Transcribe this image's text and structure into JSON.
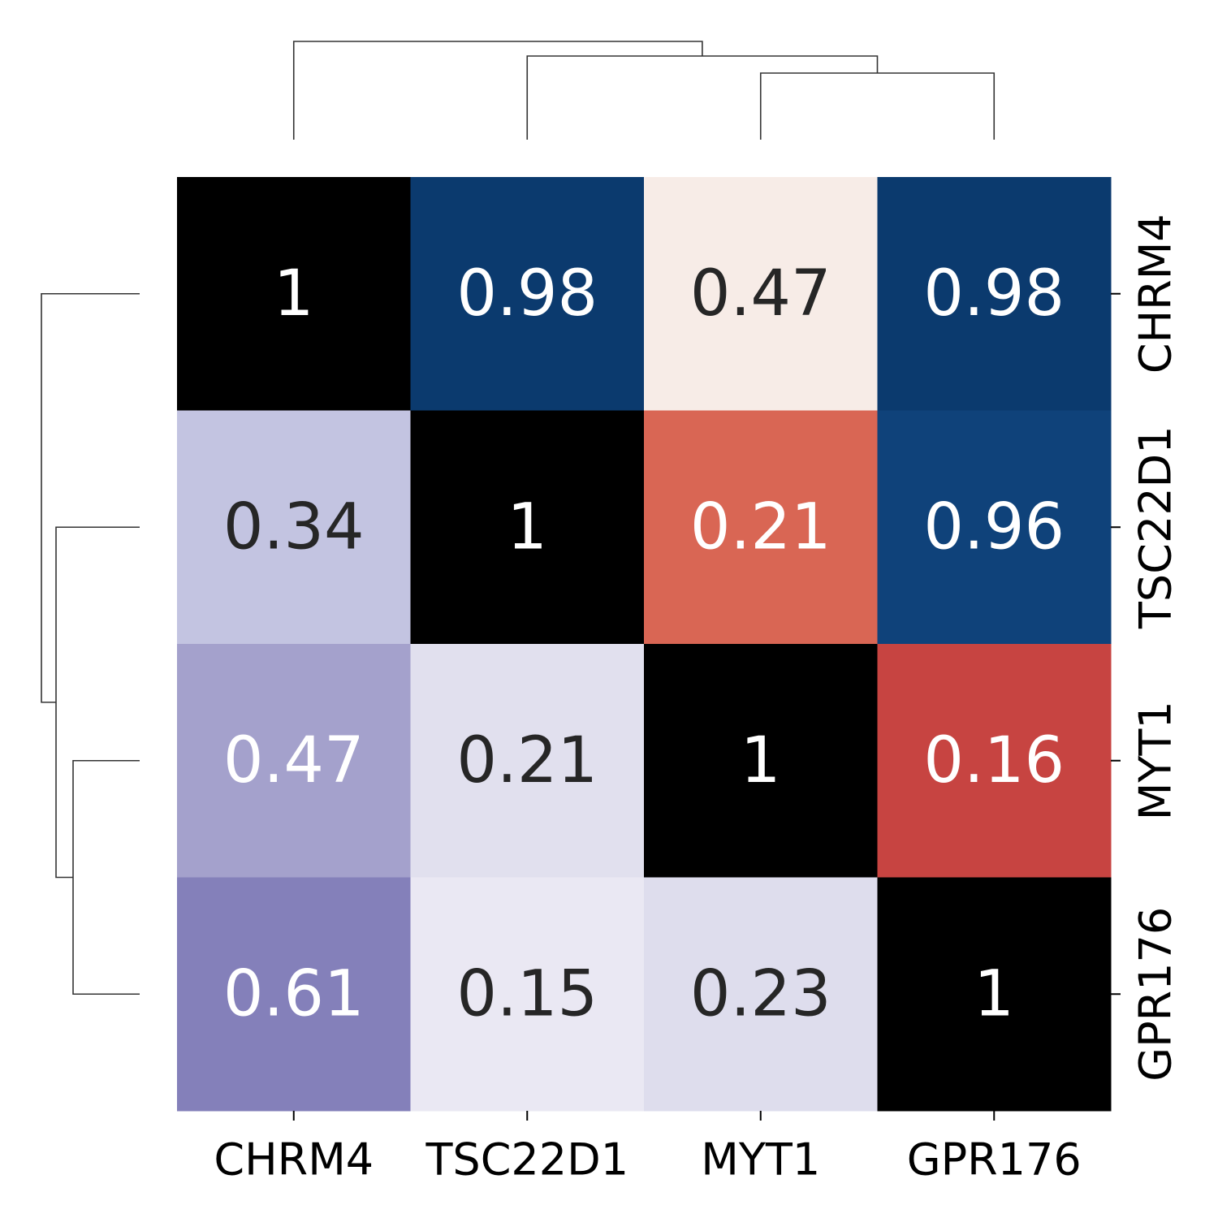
{
  "chart_data": {
    "type": "heatmap",
    "title": "",
    "xlabel": "",
    "ylabel": "",
    "columns": [
      "CHRM4",
      "TSC22D1",
      "MYT1",
      "GPR176"
    ],
    "rows": [
      "CHRM4",
      "TSC22D1",
      "MYT1",
      "GPR176"
    ],
    "values": [
      [
        1,
        0.98,
        0.47,
        0.98
      ],
      [
        0.34,
        1,
        0.21,
        0.96
      ],
      [
        0.47,
        0.21,
        1,
        0.16
      ],
      [
        0.61,
        0.15,
        0.23,
        1
      ]
    ],
    "cell_labels": [
      [
        "1",
        "0.98",
        "0.47",
        "0.98"
      ],
      [
        "0.34",
        "1",
        "0.21",
        "0.96"
      ],
      [
        "0.47",
        "0.21",
        "1",
        "0.16"
      ],
      [
        "0.61",
        "0.15",
        "0.23",
        "1"
      ]
    ],
    "cell_colors": [
      [
        "#000000",
        "#0b3a6e",
        "#f7ece7",
        "#0b3a6e"
      ],
      [
        "#c3c4e1",
        "#000000",
        "#d96654",
        "#0f427a"
      ],
      [
        "#a4a1cc",
        "#e1e0ee",
        "#000000",
        "#c74441"
      ],
      [
        "#8480ba",
        "#eae8f3",
        "#dedded",
        "#000000"
      ]
    ],
    "text_colors": [
      [
        "#ffffff",
        "#ffffff",
        "#262626",
        "#ffffff"
      ],
      [
        "#262626",
        "#ffffff",
        "#ffffff",
        "#ffffff"
      ],
      [
        "#ffffff",
        "#262626",
        "#ffffff",
        "#ffffff"
      ],
      [
        "#ffffff",
        "#262626",
        "#262626",
        "#ffffff"
      ]
    ],
    "col_dendrogram": "top",
    "row_dendrogram": "left",
    "row_tick_labels_side": "right",
    "col_tick_labels_side": "bottom",
    "row_tick_label_rotation": -90,
    "colorbar": false,
    "grid": false
  }
}
